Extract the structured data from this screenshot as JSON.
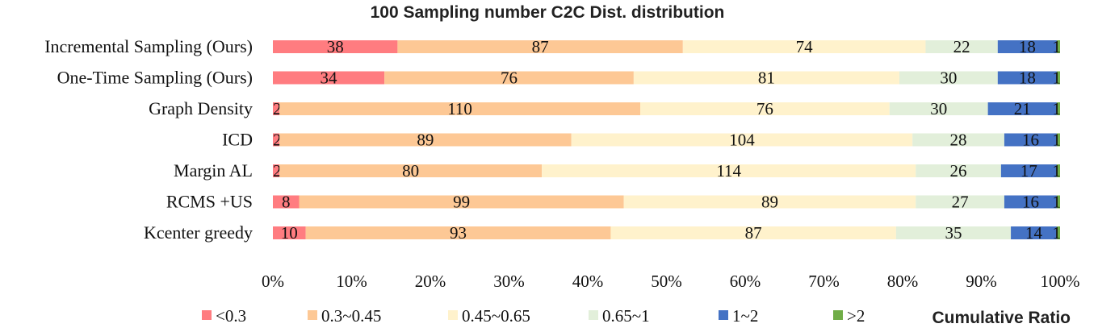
{
  "chart_data": {
    "type": "bar",
    "orientation": "horizontal",
    "stacking": "percent",
    "title": "100 Sampling number C2C Dist. distribution",
    "xlabel": "Cumulative Ratio",
    "ylabel": "",
    "xlim": [
      0,
      100
    ],
    "x_ticks": [
      "0%",
      "10%",
      "20%",
      "30%",
      "40%",
      "50%",
      "60%",
      "70%",
      "80%",
      "90%",
      "100%"
    ],
    "grid": false,
    "legend_position": "bottom",
    "categories": [
      "Incremental Sampling (Ours)",
      "One-Time Sampling (Ours)",
      "Graph Density",
      "ICD",
      "Margin AL",
      "RCMS +US",
      "Kcenter greedy"
    ],
    "series": [
      {
        "name": "<0.3",
        "color": "#ff7c80",
        "values": [
          38,
          34,
          2,
          2,
          2,
          8,
          10
        ]
      },
      {
        "name": "0.3~0.45",
        "color": "#fdc895",
        "values": [
          87,
          76,
          110,
          89,
          80,
          99,
          93
        ]
      },
      {
        "name": "0.45~0.65",
        "color": "#fff2cc",
        "values": [
          74,
          81,
          76,
          104,
          114,
          89,
          87
        ]
      },
      {
        "name": "0.65~1",
        "color": "#e2efda",
        "values": [
          22,
          30,
          30,
          28,
          26,
          27,
          35
        ]
      },
      {
        "name": "1~2",
        "color": "#4472c4",
        "values": [
          18,
          18,
          21,
          16,
          17,
          16,
          14
        ]
      },
      {
        "name": ">2",
        "color": "#70ad47",
        "values": [
          1,
          1,
          1,
          1,
          1,
          1,
          1
        ]
      }
    ]
  }
}
